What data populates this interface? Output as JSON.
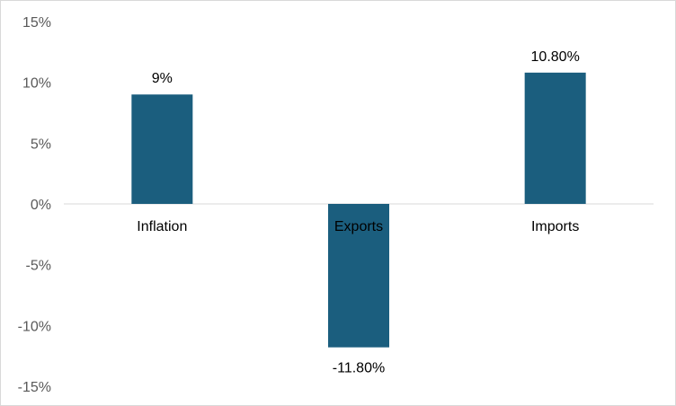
{
  "chart_data": {
    "type": "bar",
    "categories": [
      "Inflation",
      "Exports",
      "Imports"
    ],
    "values": [
      9,
      -11.8,
      10.8
    ],
    "data_labels": [
      "9%",
      "-11.80%",
      "10.80%"
    ],
    "title": "",
    "xlabel": "",
    "ylabel": "",
    "ylim": [
      -15,
      15
    ],
    "y_ticks": [
      15,
      10,
      5,
      0,
      -5,
      -10,
      -15
    ],
    "y_tick_labels": [
      "15%",
      "10%",
      "5%",
      "0%",
      "-5%",
      "-10%",
      "-15%"
    ],
    "grid": false,
    "legend": "none",
    "bar_color": "#1b5e7e",
    "axis_color": "#d9d9d9"
  }
}
